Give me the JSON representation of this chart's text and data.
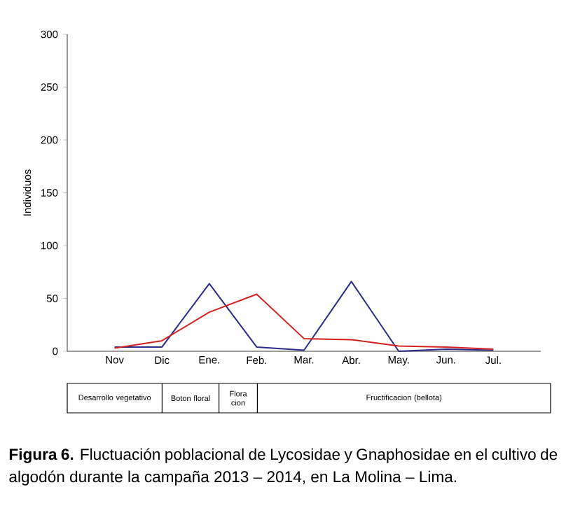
{
  "chart_data": {
    "type": "line",
    "ylabel": "Individuos",
    "categories": [
      "Nov",
      "Dic",
      "Ene.",
      "Feb.",
      "Mar.",
      "Abr.",
      "May.",
      "Jun.",
      "Jul."
    ],
    "series": [
      {
        "color": "#2b2b8c",
        "values": [
          4,
          4,
          64,
          4,
          1,
          66,
          0,
          2,
          1
        ]
      },
      {
        "color": "#d42020",
        "values": [
          3,
          10,
          37,
          54,
          12,
          11,
          5,
          4,
          2
        ]
      }
    ],
    "ylim": [
      0,
      300
    ],
    "yticks": [
      0,
      50,
      100,
      150,
      200,
      250,
      300
    ],
    "grid": false,
    "marker": "none",
    "line_style": "solid",
    "annotations": [
      "Desarrollo vegetativo",
      "Boton floral",
      "Flora cion",
      "Fructificacion (bellota)",
      "**Figura 6.** Fluctuación poblacional de Lycosidae y Gnaphosidae en el cultivo de algodón durante la campaña 2013 – 2014, en La Molina – Lima."
    ]
  }
}
